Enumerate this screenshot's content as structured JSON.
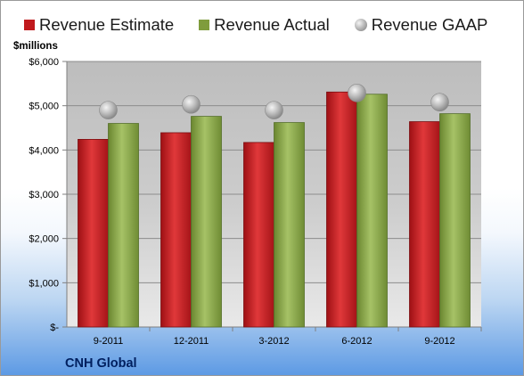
{
  "chart_data": {
    "type": "bar",
    "title": "",
    "xlabel": "",
    "ylabel": "$millions",
    "caption": "CNH Global",
    "categories": [
      "9-2011",
      "12-2011",
      "3-2012",
      "6-2012",
      "9-2012"
    ],
    "ylim": [
      0,
      6000
    ],
    "yticks": [
      0,
      1000,
      2000,
      3000,
      4000,
      5000,
      6000
    ],
    "ytick_labels": [
      "$-",
      "$1,000",
      "$2,000",
      "$3,000",
      "$4,000",
      "$5,000",
      "$6,000"
    ],
    "grid": true,
    "legend_position": "top",
    "series": [
      {
        "name": "Revenue Estimate",
        "kind": "bar",
        "color": "#c0191d",
        "values": [
          4240,
          4390,
          4170,
          5310,
          4640
        ]
      },
      {
        "name": "Revenue Actual",
        "kind": "bar",
        "color": "#7f9c3c",
        "values": [
          4600,
          4760,
          4620,
          5260,
          4820
        ]
      },
      {
        "name": "Revenue GAAP",
        "kind": "marker",
        "color": "#a8a8a8",
        "values": [
          4900,
          5030,
          4900,
          5290,
          5080
        ]
      }
    ]
  }
}
